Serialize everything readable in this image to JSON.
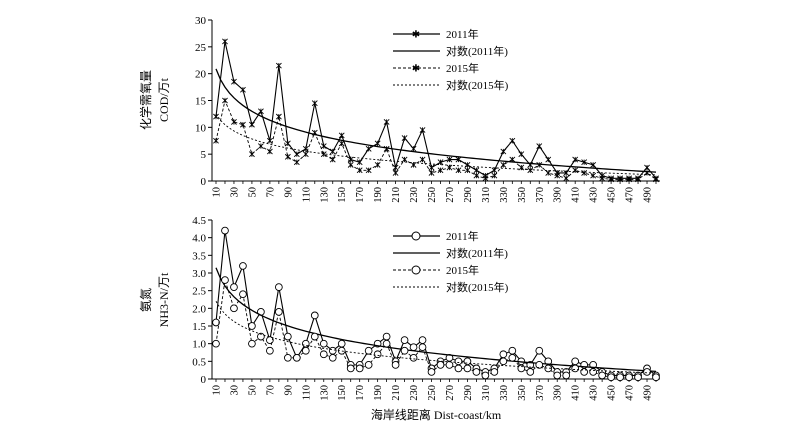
{
  "chart_data": [
    {
      "type": "line",
      "ylabel_cn": "化学需氧量",
      "ylabel_unit": "COD/万t",
      "ylim": [
        0,
        30
      ],
      "yticks": [
        "0",
        "5",
        "10",
        "15",
        "20",
        "25",
        "30"
      ],
      "x": [
        10,
        20,
        30,
        40,
        50,
        60,
        70,
        80,
        90,
        100,
        110,
        120,
        130,
        140,
        150,
        160,
        170,
        180,
        190,
        200,
        210,
        220,
        230,
        240,
        250,
        260,
        270,
        280,
        290,
        300,
        310,
        320,
        330,
        340,
        350,
        360,
        370,
        380,
        390,
        400,
        410,
        420,
        430,
        440,
        450,
        460,
        470,
        480,
        490,
        500
      ],
      "xticks": [
        "10",
        "30",
        "50",
        "70",
        "90",
        "110",
        "130",
        "150",
        "170",
        "190",
        "210",
        "230",
        "250",
        "270",
        "290",
        "310",
        "330",
        "350",
        "370",
        "390",
        "410",
        "430",
        "450",
        "470",
        "490"
      ],
      "series": [
        {
          "name": "2011年",
          "style": "x-marker-solid",
          "values": [
            12,
            26,
            18.5,
            17,
            10.5,
            13,
            7.5,
            21.5,
            7,
            5,
            6,
            14.5,
            6.5,
            5.5,
            8.5,
            4,
            3.5,
            6,
            7,
            11,
            2.5,
            8,
            6,
            9.5,
            2.5,
            3.5,
            4,
            4,
            3,
            2,
            1,
            2,
            5.5,
            7.5,
            5,
            3,
            6.5,
            4,
            1.5,
            1.5,
            4,
            3.5,
            3,
            1,
            0.5,
            0.5,
            0.5,
            0.5,
            2.5,
            0.5
          ]
        },
        {
          "name": "对数(2011年)",
          "style": "log-fit-solid",
          "a": 20.9,
          "b": 4.92
        },
        {
          "name": "2015年",
          "style": "x-marker-dashed",
          "values": [
            7.5,
            15,
            11,
            10.5,
            5,
            6.5,
            5.5,
            12,
            4.5,
            3.5,
            5,
            9,
            5,
            4,
            7,
            3,
            2,
            2,
            3,
            6,
            1.5,
            4,
            3,
            4,
            1.5,
            2,
            2.5,
            2,
            2,
            1,
            0.5,
            1,
            3,
            4,
            2.5,
            2,
            3,
            1.5,
            1,
            0.5,
            2,
            1.5,
            1,
            0.5,
            0.3,
            0.3,
            0.3,
            0.3,
            1.5,
            0.3
          ]
        },
        {
          "name": "对数(2015年)",
          "style": "log-fit-dashed",
          "a": 12.5,
          "b": 2.9
        }
      ]
    },
    {
      "type": "line",
      "ylabel_cn": "氨氮",
      "ylabel_unit": "NH3-N/万t",
      "ylim": [
        0,
        4.5
      ],
      "yticks": [
        "0",
        "0.5",
        "1.0",
        "1.5",
        "2.0",
        "2.5",
        "3.0",
        "3.5",
        "4.0",
        "4.5"
      ],
      "x": [
        10,
        20,
        30,
        40,
        50,
        60,
        70,
        80,
        90,
        100,
        110,
        120,
        130,
        140,
        150,
        160,
        170,
        180,
        190,
        200,
        210,
        220,
        230,
        240,
        250,
        260,
        270,
        280,
        290,
        300,
        310,
        320,
        330,
        340,
        350,
        360,
        370,
        380,
        390,
        400,
        410,
        420,
        430,
        440,
        450,
        460,
        470,
        480,
        490,
        500
      ],
      "xticks": [
        "10",
        "30",
        "50",
        "70",
        "90",
        "110",
        "130",
        "150",
        "170",
        "190",
        "210",
        "230",
        "250",
        "270",
        "290",
        "310",
        "330",
        "350",
        "370",
        "390",
        "410",
        "430",
        "450",
        "470",
        "490"
      ],
      "xlabel": "海岸线距离 Dist-coast/km",
      "series": [
        {
          "name": "2011年",
          "style": "o-marker-solid",
          "values": [
            1.6,
            4.2,
            2.6,
            3.2,
            1.5,
            1.9,
            1.1,
            2.6,
            1.2,
            0.6,
            1.0,
            1.8,
            1.0,
            0.8,
            1.0,
            0.4,
            0.4,
            0.8,
            1.0,
            1.2,
            0.5,
            1.1,
            0.9,
            1.1,
            0.3,
            0.5,
            0.6,
            0.5,
            0.5,
            0.3,
            0.2,
            0.3,
            0.7,
            0.8,
            0.5,
            0.4,
            0.8,
            0.5,
            0.2,
            0.2,
            0.5,
            0.4,
            0.4,
            0.2,
            0.1,
            0.1,
            0.1,
            0.1,
            0.3,
            0.1
          ]
        },
        {
          "name": "对数(2011年)",
          "style": "log-fit-solid",
          "a": 3.15,
          "b": 0.75
        },
        {
          "name": "2015年",
          "style": "o-marker-dashed",
          "values": [
            1.0,
            2.8,
            2.0,
            2.4,
            1.0,
            1.2,
            0.8,
            1.9,
            0.6,
            0.6,
            0.8,
            1.2,
            0.7,
            0.6,
            0.8,
            0.3,
            0.3,
            0.4,
            0.7,
            1.0,
            0.4,
            0.8,
            0.6,
            0.9,
            0.2,
            0.4,
            0.4,
            0.3,
            0.3,
            0.2,
            0.1,
            0.2,
            0.5,
            0.6,
            0.3,
            0.2,
            0.4,
            0.3,
            0.1,
            0.1,
            0.3,
            0.2,
            0.2,
            0.1,
            0.05,
            0.05,
            0.05,
            0.05,
            0.2,
            0.05
          ]
        },
        {
          "name": "对数(2015年)",
          "style": "log-fit-dashed",
          "a": 2.2,
          "b": 0.52
        }
      ]
    }
  ]
}
